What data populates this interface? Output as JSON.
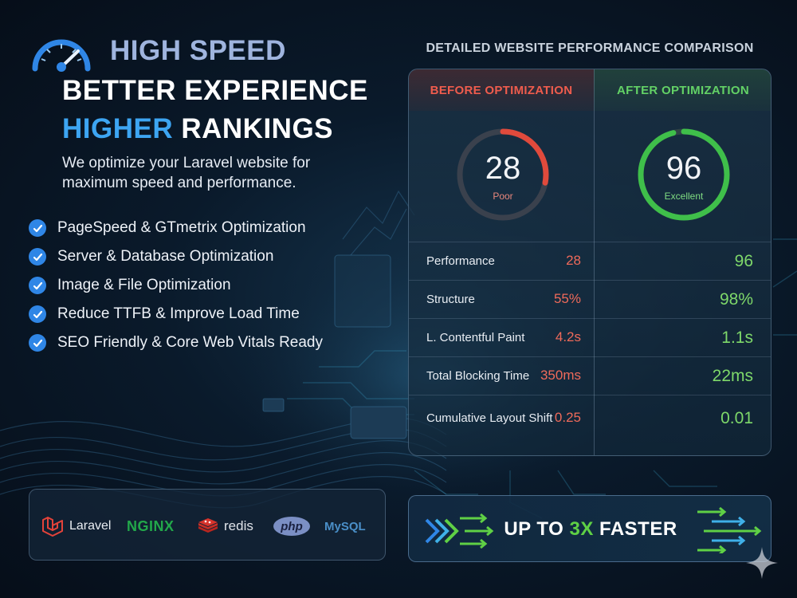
{
  "hero": {
    "title_line1": "HIGH SPEED",
    "title_line2": "BETTER EXPERIENCE",
    "title_line3_blue": "HIGHER",
    "title_line3_white": "RANKINGS",
    "description": "We optimize your Laravel website for maximum speed and performance.",
    "icon": "speedometer-icon"
  },
  "features": [
    "PageSpeed & GTmetrix Optimization",
    "Server & Database Optimization",
    "Image & File Optimization",
    "Reduce TTFB & Improve Load Time",
    "SEO Friendly & Core Web Vitals Ready"
  ],
  "comparison": {
    "title": "DETAILED WEBSITE PERFORMANCE COMPARISON",
    "before": {
      "heading": "BEFORE OPTIMIZATION",
      "score": "28",
      "rating": "Poor",
      "score_fraction": 0.28,
      "color": "#e04a3c"
    },
    "after": {
      "heading": "AFTER OPTIMIZATION",
      "score": "96",
      "rating": "Excellent",
      "score_fraction": 0.96,
      "color": "#3fbf4a"
    },
    "metrics": [
      {
        "name": "Performance",
        "before": "28",
        "after": "96"
      },
      {
        "name": "Structure",
        "before": "55%",
        "after": "98%"
      },
      {
        "name": "L. Contentful Paint",
        "before": "4.2s",
        "after": "1.1s"
      },
      {
        "name": "Total Blocking Time",
        "before": "350ms",
        "after": "22ms"
      },
      {
        "name": "Cumulative Layout Shift",
        "before": "0.25",
        "after": "0.01"
      }
    ]
  },
  "tech": {
    "laravel": "Laravel",
    "nginx": "NGINX",
    "redis": "redis",
    "php": "php",
    "mysql": "MySQL"
  },
  "banner": {
    "prefix": "UP TO ",
    "highlight": "3X",
    "suffix": " FASTER"
  },
  "colors": {
    "accent_blue": "#3da5f2",
    "check_blue": "#2f86e6",
    "bad_red": "#ef5c4d",
    "good_green": "#63d266"
  }
}
